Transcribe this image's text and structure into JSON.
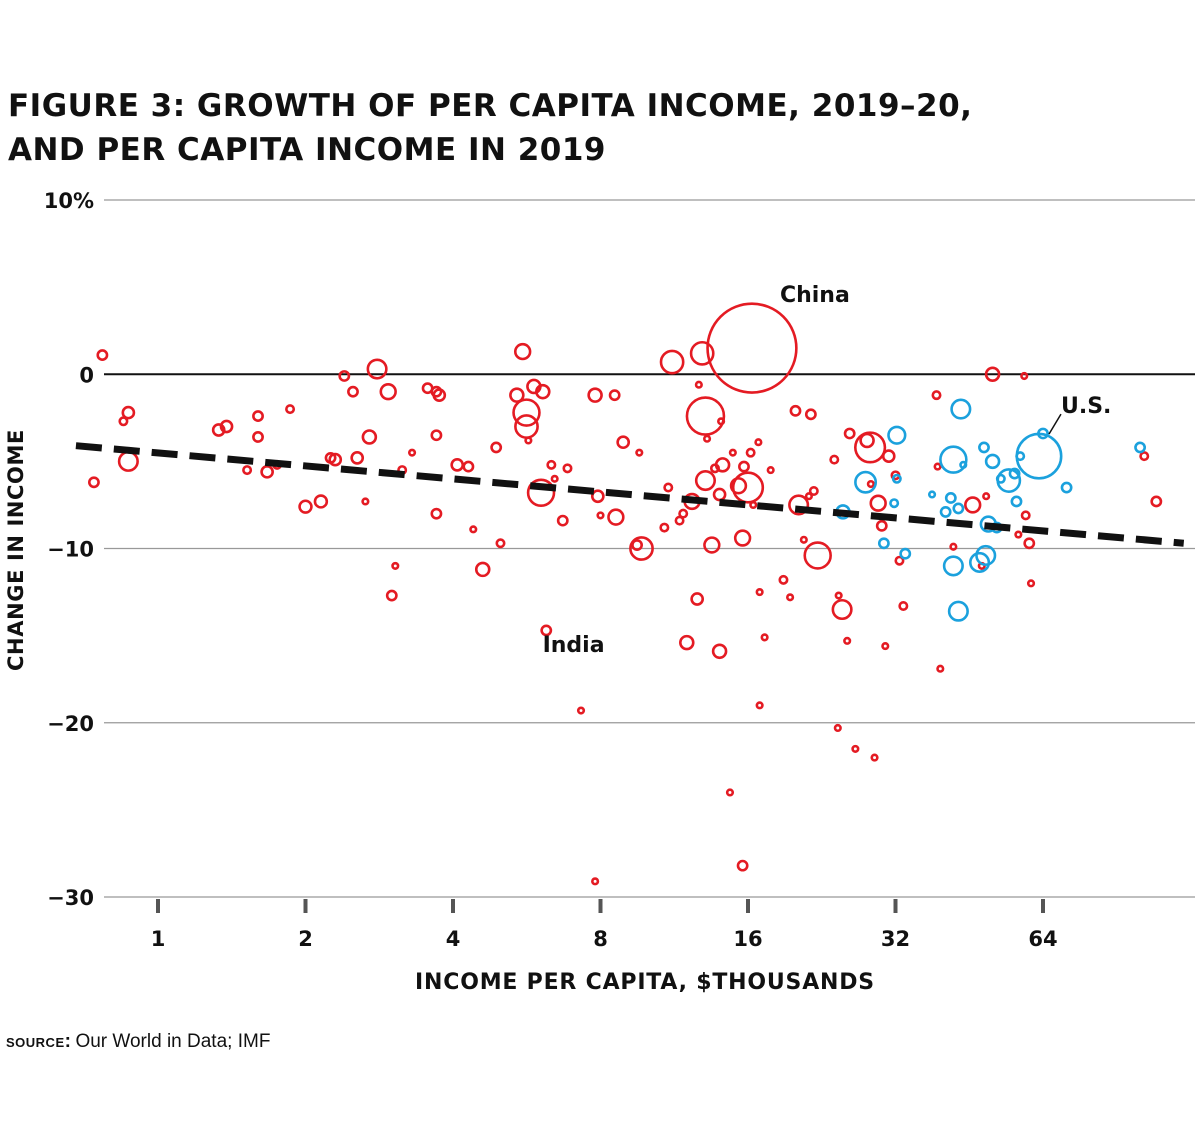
{
  "title": {
    "line1": "FIGURE 3: GROWTH OF PER CAPITA INCOME, 2019–20,",
    "line2": "AND PER CAPITA INCOME IN 2019"
  },
  "source": {
    "label": "source:",
    "text": "Our World in Data; IMF"
  },
  "colors": {
    "red": "#e41b23",
    "blue": "#1ba1dd",
    "trend": "#111111",
    "grid": "#999999",
    "zero": "#111111"
  },
  "chart_data": {
    "type": "scatter",
    "xlabel": "INCOME PER CAPITA, $THOUSANDS",
    "ylabel": "CHANGE IN INCOME",
    "x_scale": "log2",
    "xlim": [
      0.68,
      124
    ],
    "ylim": [
      -30,
      10
    ],
    "x_ticks": [
      1,
      2,
      4,
      8,
      16,
      32,
      64
    ],
    "x_tick_labels": [
      "1",
      "2",
      "4",
      "8",
      "16",
      "32",
      "64"
    ],
    "y_ticks": [
      10,
      0,
      -10,
      -20,
      -30
    ],
    "y_tick_labels": [
      "10%",
      "0",
      "−10",
      "−20",
      "−30"
    ],
    "grid": "horizontal",
    "trendline": {
      "style": "dashed",
      "x": [
        0.68,
        124
      ],
      "y": [
        -4.1,
        -9.7
      ]
    },
    "annotations": [
      {
        "text": "China",
        "x": 16.3,
        "y": 1.5
      },
      {
        "text": "India",
        "x": 6.6,
        "y": -11.8
      },
      {
        "text": "U.S.",
        "x": 62.8,
        "y": -4.7
      }
    ],
    "size_legend": "bubble area ∝ population",
    "series": [
      {
        "group": "red",
        "points": [
          [
            0.74,
            -6.2,
            2.5
          ],
          [
            0.77,
            1.1,
            2.5
          ],
          [
            0.85,
            -2.7,
            2
          ],
          [
            0.87,
            -2.2,
            3
          ],
          [
            0.87,
            -5.0,
            5
          ],
          [
            1.33,
            -3.2,
            3
          ],
          [
            1.38,
            -3.0,
            3
          ],
          [
            1.52,
            -5.5,
            2
          ],
          [
            1.6,
            -2.4,
            2.5
          ],
          [
            1.6,
            -3.6,
            2.5
          ],
          [
            1.67,
            -5.6,
            3
          ],
          [
            1.75,
            -5.2,
            2
          ],
          [
            1.86,
            -2.0,
            2
          ],
          [
            2.0,
            -7.6,
            3.2
          ],
          [
            2.15,
            -7.3,
            3.2
          ],
          [
            2.25,
            -4.8,
            2.5
          ],
          [
            2.3,
            -4.9,
            3
          ],
          [
            2.4,
            -0.1,
            2.5
          ],
          [
            2.5,
            -1.0,
            2.5
          ],
          [
            2.55,
            -4.8,
            3
          ],
          [
            2.65,
            -7.3,
            1.5
          ],
          [
            2.7,
            -3.6,
            3.5
          ],
          [
            2.8,
            0.3,
            5
          ],
          [
            2.95,
            -1.0,
            4
          ],
          [
            3.0,
            -12.7,
            2.5
          ],
          [
            3.05,
            -11.0,
            1.5
          ],
          [
            3.15,
            -5.5,
            2
          ],
          [
            3.3,
            -4.5,
            1.5
          ],
          [
            3.55,
            -0.8,
            2.5
          ],
          [
            3.7,
            -1.0,
            2.5
          ],
          [
            3.75,
            -1.2,
            3
          ],
          [
            3.7,
            -3.5,
            2.5
          ],
          [
            3.7,
            -8.0,
            2.5
          ],
          [
            4.08,
            -5.2,
            3
          ],
          [
            4.3,
            -5.3,
            2.5
          ],
          [
            4.4,
            -8.9,
            1.5
          ],
          [
            4.6,
            -11.2,
            3.5
          ],
          [
            4.9,
            -4.2,
            2.5
          ],
          [
            5.0,
            -9.7,
            2
          ],
          [
            5.4,
            -1.2,
            3.5
          ],
          [
            5.55,
            1.3,
            4
          ],
          [
            5.65,
            -2.2,
            7
          ],
          [
            5.65,
            -3.0,
            6
          ],
          [
            5.7,
            -3.8,
            1.5
          ],
          [
            5.85,
            -0.7,
            3.5
          ],
          [
            6.05,
            -6.8,
            7
          ],
          [
            6.1,
            -1.0,
            3.5
          ],
          [
            6.2,
            -14.7,
            2.5
          ],
          [
            6.35,
            -5.2,
            2
          ],
          [
            6.45,
            -6.0,
            1.5
          ],
          [
            6.7,
            -8.4,
            2.5
          ],
          [
            6.85,
            -5.4,
            2
          ],
          [
            7.3,
            -19.3,
            1.5
          ],
          [
            7.8,
            -29.1,
            1.5
          ],
          [
            7.8,
            -1.2,
            3.5
          ],
          [
            7.9,
            -7.0,
            3
          ],
          [
            8.0,
            -8.1,
            1.5
          ],
          [
            8.55,
            -1.2,
            2.5
          ],
          [
            8.6,
            -8.2,
            4
          ],
          [
            8.9,
            -3.9,
            3
          ],
          [
            9.5,
            -9.8,
            2.5
          ],
          [
            9.6,
            -4.5,
            1.5
          ],
          [
            9.7,
            -10.0,
            6
          ],
          [
            10.8,
            -8.8,
            2
          ],
          [
            11.0,
            -6.5,
            2
          ],
          [
            11.2,
            0.7,
            6
          ],
          [
            11.6,
            -8.4,
            2
          ],
          [
            11.8,
            -8.0,
            2
          ],
          [
            12.0,
            -15.4,
            3.5
          ],
          [
            12.3,
            -7.3,
            4
          ],
          [
            12.6,
            -12.9,
            3
          ],
          [
            12.7,
            -0.6,
            1.5
          ],
          [
            12.9,
            1.2,
            6
          ],
          [
            13.1,
            -6.1,
            5
          ],
          [
            13.1,
            -2.4,
            10
          ],
          [
            13.2,
            -3.7,
            1.5
          ],
          [
            13.5,
            -9.8,
            4
          ],
          [
            13.7,
            -5.4,
            2
          ],
          [
            14.0,
            -15.9,
            3.5
          ],
          [
            14.0,
            -6.9,
            3
          ],
          [
            14.1,
            -2.7,
            1.5
          ],
          [
            14.2,
            -5.2,
            3.5
          ],
          [
            14.7,
            -24.0,
            1.5
          ],
          [
            14.9,
            -4.5,
            1.5
          ],
          [
            15.3,
            -6.4,
            4
          ],
          [
            15.7,
            -5.3,
            2.5
          ],
          [
            15.6,
            -9.4,
            4
          ],
          [
            15.6,
            -28.2,
            2.5
          ],
          [
            16.0,
            -6.5,
            8
          ],
          [
            16.2,
            -4.5,
            2
          ],
          [
            16.4,
            -7.5,
            1.5
          ],
          [
            16.8,
            -3.9,
            1.5
          ],
          [
            16.9,
            -19.0,
            1.5
          ],
          [
            16.9,
            -12.5,
            1.5
          ],
          [
            17.3,
            -15.1,
            1.5
          ],
          [
            16.3,
            1.5,
            24
          ],
          [
            17.8,
            -5.5,
            1.5
          ],
          [
            18.9,
            -11.8,
            2
          ],
          [
            19.5,
            -12.8,
            1.5
          ],
          [
            20.0,
            -2.1,
            2.5
          ],
          [
            20.3,
            -7.5,
            5
          ],
          [
            20.8,
            -9.5,
            1.5
          ],
          [
            21.3,
            -7.0,
            1.5
          ],
          [
            21.5,
            -2.3,
            2.5
          ],
          [
            21.8,
            -6.7,
            2
          ],
          [
            22.2,
            -10.4,
            7
          ],
          [
            24.0,
            -4.9,
            2
          ],
          [
            24.5,
            -12.7,
            1.5
          ],
          [
            24.4,
            -20.3,
            1.5
          ],
          [
            24.9,
            -13.5,
            5
          ],
          [
            25.5,
            -15.3,
            1.5
          ],
          [
            25.8,
            -3.4,
            2.5
          ],
          [
            26.5,
            -21.5,
            1.5
          ],
          [
            28.0,
            -3.8,
            3.5
          ],
          [
            28.4,
            -4.2,
            8
          ],
          [
            28.5,
            -6.3,
            1.5
          ],
          [
            29.0,
            -22.0,
            1.5
          ],
          [
            29.5,
            -7.4,
            4
          ],
          [
            30.0,
            -8.7,
            2.5
          ],
          [
            30.5,
            -15.6,
            1.5
          ],
          [
            31.0,
            -4.7,
            3
          ],
          [
            32.0,
            -5.8,
            2
          ],
          [
            32.6,
            -10.7,
            2
          ],
          [
            33.2,
            -13.3,
            2
          ],
          [
            38.8,
            -1.2,
            2
          ],
          [
            39.0,
            -5.3,
            1.5
          ],
          [
            39.5,
            -16.9,
            1.5
          ],
          [
            42.0,
            -9.9,
            1.5
          ],
          [
            46.0,
            -7.5,
            4
          ],
          [
            48.0,
            -11.0,
            1.5
          ],
          [
            49.0,
            -7.0,
            1.5
          ],
          [
            50.5,
            0.0,
            3.5
          ],
          [
            57.0,
            -9.2,
            1.5
          ],
          [
            58.6,
            -0.1,
            1.5
          ],
          [
            59.0,
            -8.1,
            2
          ],
          [
            60.0,
            -9.7,
            2.5
          ],
          [
            60.5,
            -12.0,
            1.5
          ],
          [
            103.0,
            -4.7,
            2
          ],
          [
            109.0,
            -7.3,
            2.5
          ]
        ]
      },
      {
        "group": "blue",
        "points": [
          [
            25.0,
            -7.9,
            3.5
          ],
          [
            27.8,
            -6.2,
            5.5
          ],
          [
            30.3,
            -9.7,
            2.5
          ],
          [
            31.8,
            -7.4,
            2
          ],
          [
            32.2,
            -6.0,
            2
          ],
          [
            32.2,
            -3.5,
            4.5
          ],
          [
            33.5,
            -10.3,
            2.5
          ],
          [
            38.0,
            -6.9,
            1.5
          ],
          [
            40.5,
            -7.9,
            2.5
          ],
          [
            41.5,
            -7.1,
            2.5
          ],
          [
            42.0,
            -4.9,
            7
          ],
          [
            42.0,
            -11.0,
            5
          ],
          [
            43.0,
            -13.6,
            5
          ],
          [
            43.0,
            -7.7,
            2.5
          ],
          [
            43.5,
            -2.0,
            5
          ],
          [
            44.0,
            -5.2,
            1.5
          ],
          [
            47.5,
            -10.8,
            5
          ],
          [
            48.5,
            -4.2,
            2.5
          ],
          [
            48.9,
            -10.4,
            5
          ],
          [
            49.5,
            -8.6,
            4
          ],
          [
            50.5,
            -5.0,
            3.5
          ],
          [
            51.5,
            -8.8,
            2.5
          ],
          [
            52.5,
            -6.0,
            2
          ],
          [
            54.5,
            -6.1,
            6
          ],
          [
            56.5,
            -7.3,
            2.5
          ],
          [
            56.0,
            -5.7,
            2.5
          ],
          [
            57.5,
            -4.7,
            2
          ],
          [
            62.8,
            -4.7,
            12
          ],
          [
            64.0,
            -3.4,
            2.5
          ],
          [
            71.5,
            -6.5,
            2.5
          ],
          [
            101.0,
            -4.2,
            2.5
          ]
        ]
      }
    ]
  }
}
